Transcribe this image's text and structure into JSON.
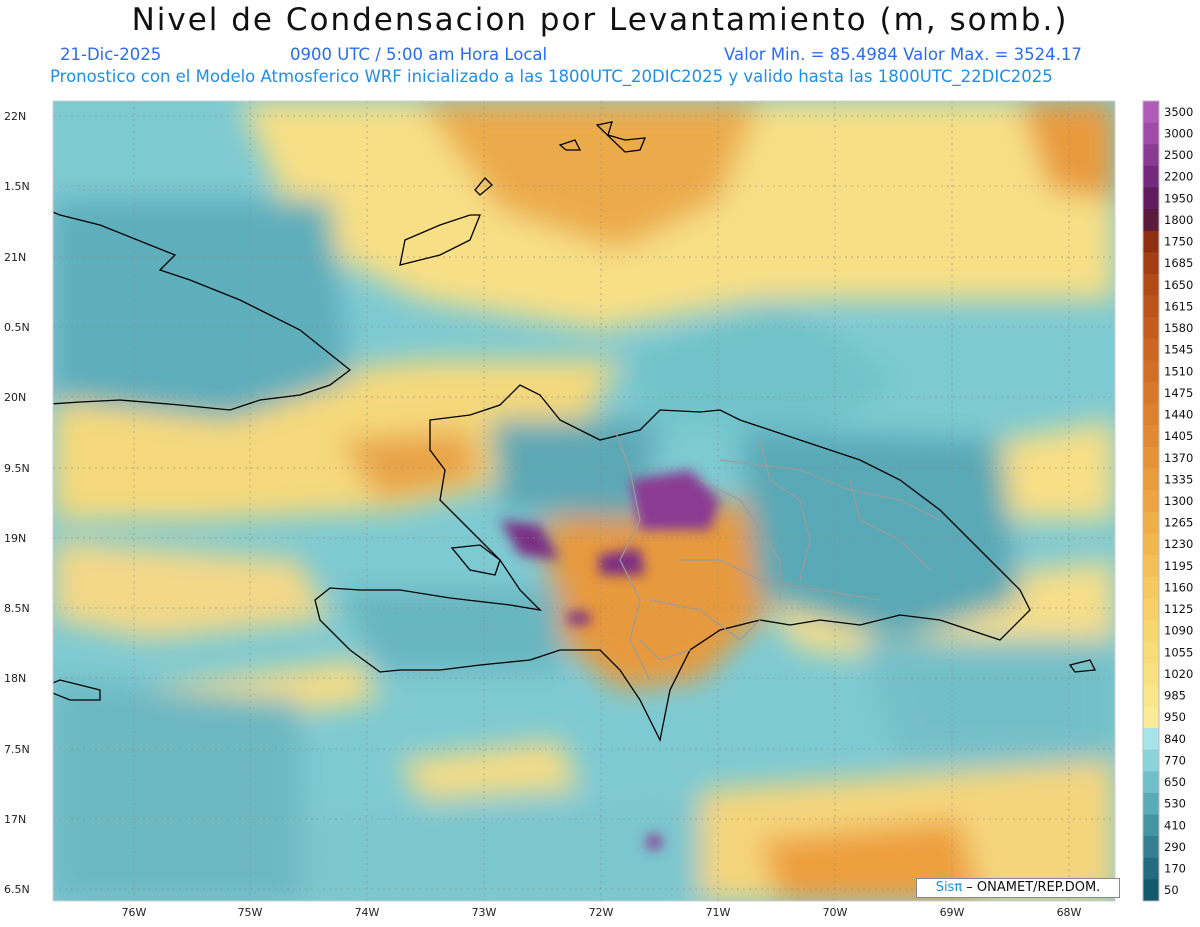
{
  "header": {
    "title": "Nivel de Condensacion por Levantamiento (m, somb.)",
    "date": "21-Dic-2025",
    "time": "0900 UTC / 5:00 am Hora Local",
    "minmax": "Valor Min. = 85.4984  Valor Max. = 3524.17",
    "forecast": "Pronostico con el Modelo Atmosferico WRF inicializado a las 1800UTC_20DIC2025 y valido hasta las  1800UTC_22DIC2025"
  },
  "map": {
    "lat_labels": [
      "22N",
      "1.5N",
      "21N",
      "0.5N",
      "20N",
      "9.5N",
      "19N",
      "8.5N",
      "18N",
      "7.5N",
      "17N",
      "6.5N"
    ],
    "lon_labels": [
      "76W",
      "75W",
      "74W",
      "73W",
      "72W",
      "71W",
      "70W",
      "69W",
      "68W"
    ]
  },
  "colorbar": {
    "labels": [
      "3500",
      "3000",
      "2500",
      "2200",
      "1950",
      "1800",
      "1750",
      "1685",
      "1650",
      "1615",
      "1580",
      "1545",
      "1510",
      "1475",
      "1440",
      "1405",
      "1370",
      "1335",
      "1300",
      "1265",
      "1230",
      "1195",
      "1160",
      "1125",
      "1090",
      "1055",
      "1020",
      "985",
      "950",
      "840",
      "770",
      "650",
      "530",
      "410",
      "290",
      "170",
      "50"
    ],
    "colors": [
      "#b15bbb",
      "#a04aa9",
      "#8a3a93",
      "#742a7c",
      "#5f1d60",
      "#5a1a3a",
      "#8f2f12",
      "#a23d14",
      "#b14a17",
      "#bc531a",
      "#c45c1e",
      "#cc6622",
      "#d26f26",
      "#d8782a",
      "#dd812f",
      "#e18a33",
      "#e59337",
      "#e99c3c",
      "#eca540",
      "#efae46",
      "#f1b74d",
      "#f3c055",
      "#f5c95e",
      "#f6d066",
      "#f7d66e",
      "#f8dc77",
      "#f9e181",
      "#fae68a",
      "#fbeb96",
      "#a6e4e8",
      "#8ad3da",
      "#6fc0c9",
      "#58abb7",
      "#4495a4",
      "#348092",
      "#236b80",
      "#14586e"
    ]
  },
  "credit": {
    "brand": "Sisπ",
    "org": " – ONAMET/REP.DOM."
  }
}
